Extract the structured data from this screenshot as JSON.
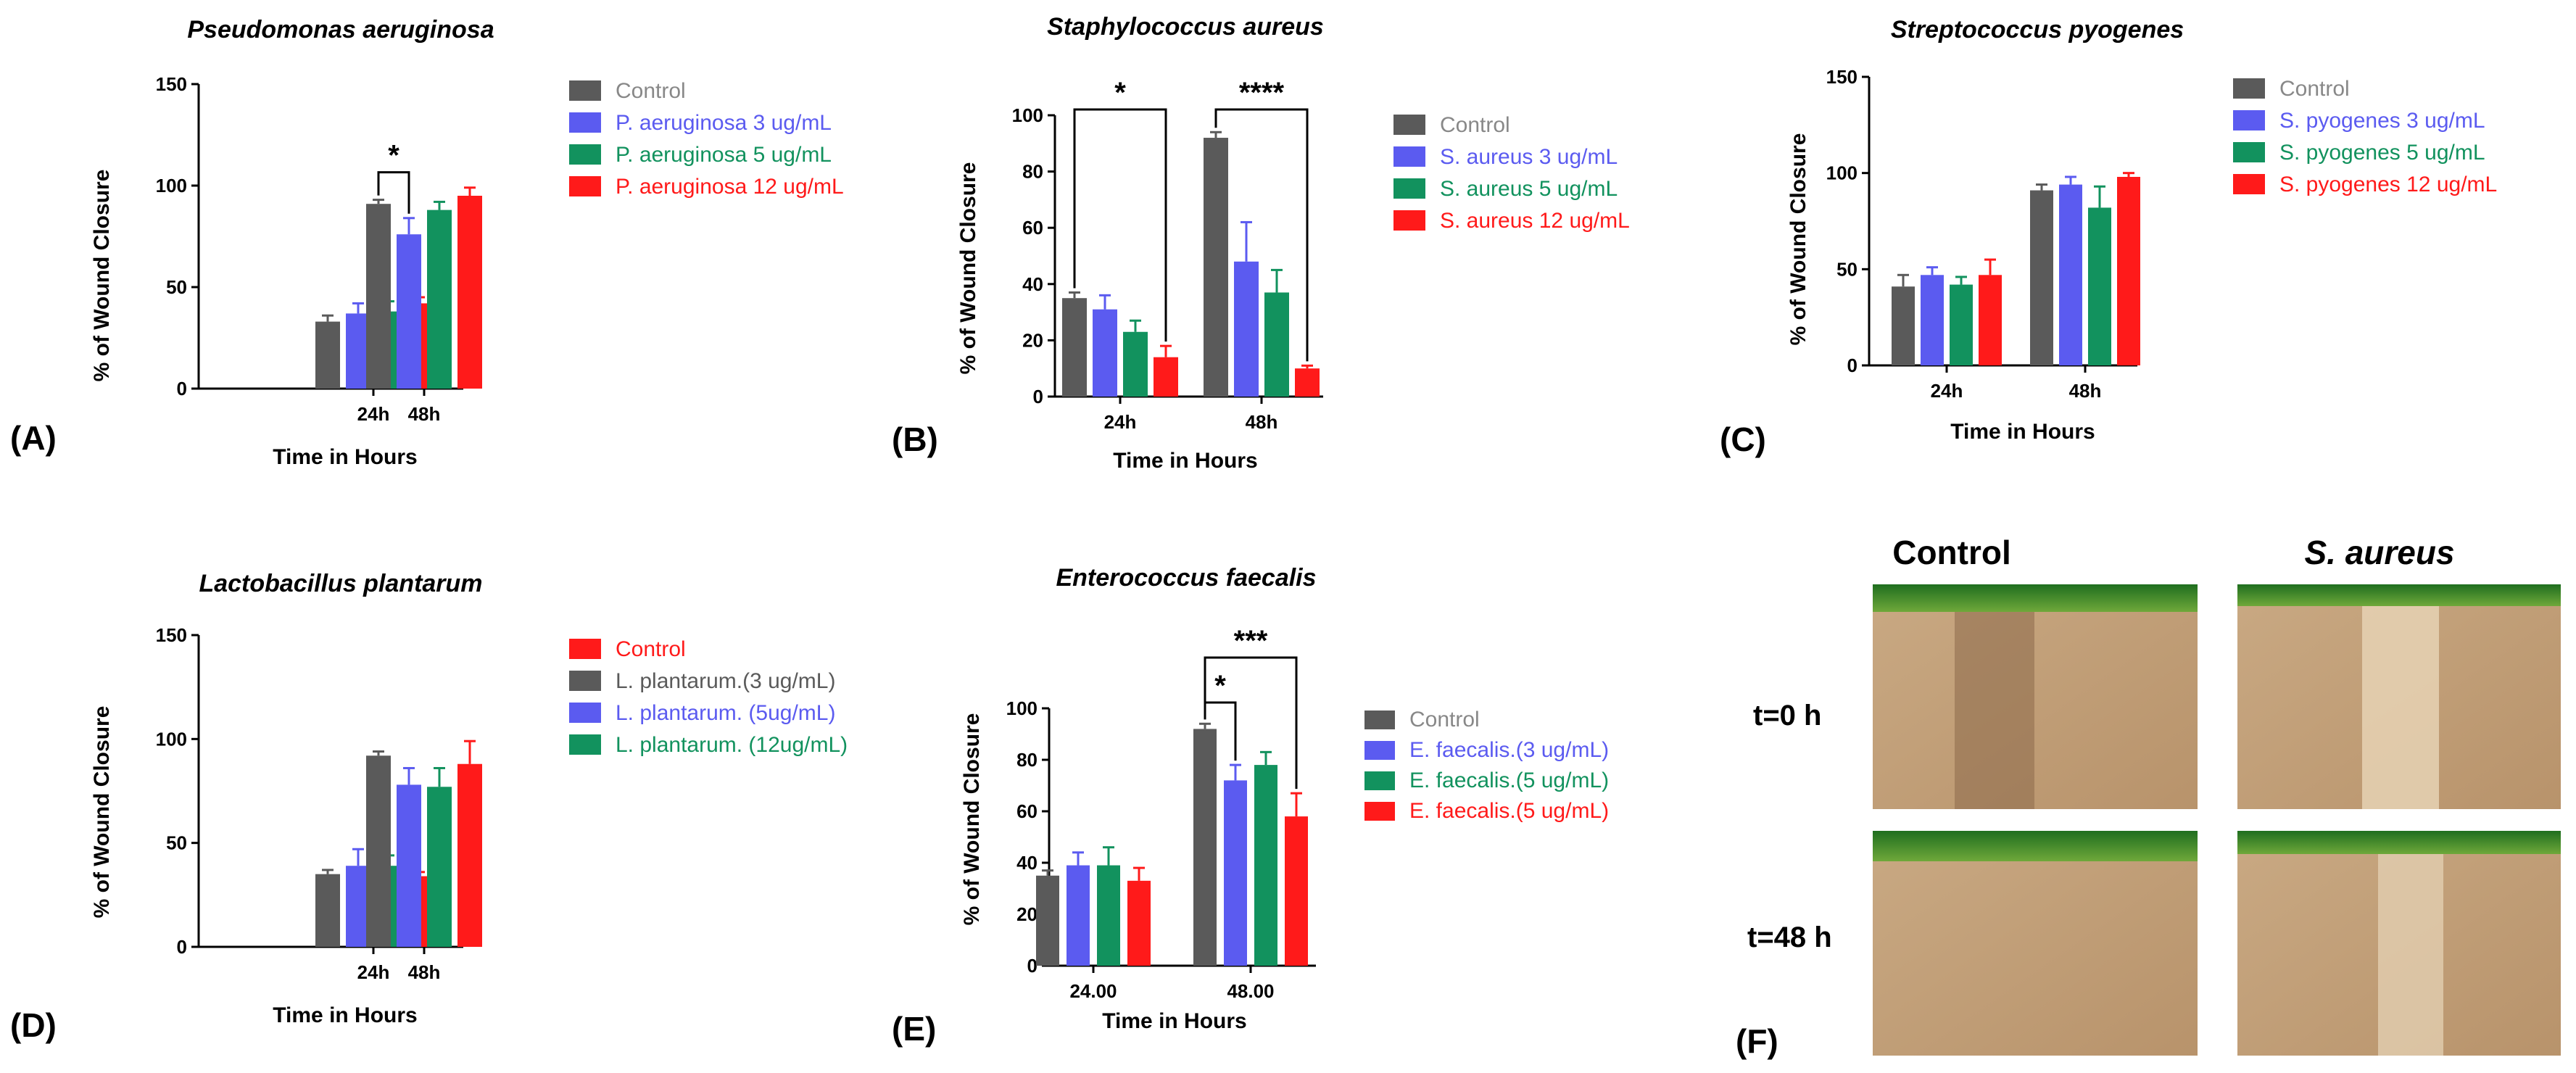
{
  "colors": {
    "control": "#5a5a5a",
    "low": "#5b5bf0",
    "mid": "#12925e",
    "high": "#ff1a1a"
  },
  "chart_data": [
    {
      "panel": "(A)",
      "type": "bar",
      "title": "Pseudomonas aeruginosa",
      "xlabel": "Time in Hours",
      "ylabel": "% of Wound Closure",
      "categories": [
        "24h",
        "48h"
      ],
      "ylim": [
        0,
        150
      ],
      "yticks": [
        0,
        50,
        100,
        150
      ],
      "series": [
        {
          "name": "Control",
          "values": [
            33,
            91
          ],
          "errors": [
            3,
            2
          ]
        },
        {
          "name": "P. aeruginosa 3 ug/mL",
          "values": [
            37,
            76
          ],
          "errors": [
            5,
            8
          ]
        },
        {
          "name": "P. aeruginosa 5 ug/mL",
          "values": [
            38,
            88
          ],
          "errors": [
            5,
            4
          ]
        },
        {
          "name": "P. aeruginosa 12 ug/mL",
          "values": [
            42,
            95
          ],
          "errors": [
            3,
            4
          ]
        }
      ],
      "significance": [
        {
          "label": "*",
          "category": 1,
          "from_series": 0,
          "to_series": 1
        }
      ]
    },
    {
      "panel": "(B)",
      "type": "bar",
      "title": "Staphylococcus aureus",
      "xlabel": "Time in Hours",
      "ylabel": "% of Wound Closure",
      "categories": [
        "24h",
        "48h"
      ],
      "ylim": [
        0,
        100
      ],
      "yticks": [
        0,
        20,
        40,
        60,
        80,
        100
      ],
      "series": [
        {
          "name": "Control",
          "values": [
            35,
            92
          ],
          "errors": [
            2,
            2
          ]
        },
        {
          "name": "S. aureus 3 ug/mL",
          "values": [
            31,
            48
          ],
          "errors": [
            5,
            14
          ]
        },
        {
          "name": "S. aureus 5 ug/mL",
          "values": [
            23,
            37
          ],
          "errors": [
            4,
            8
          ]
        },
        {
          "name": "S. aureus 12 ug/mL",
          "values": [
            14,
            10
          ],
          "errors": [
            4,
            1
          ]
        }
      ],
      "significance": [
        {
          "label": "*",
          "category": 0,
          "from_series": 0,
          "to_series": 3
        },
        {
          "label": "****",
          "category": 1,
          "from_series": 0,
          "to_series": 3
        }
      ]
    },
    {
      "panel": "(C)",
      "type": "bar",
      "title": "Streptococcus pyogenes",
      "xlabel": "Time in Hours",
      "ylabel": "% of Wound Closure",
      "categories": [
        "24h",
        "48h"
      ],
      "ylim": [
        0,
        150
      ],
      "yticks": [
        0,
        50,
        100,
        150
      ],
      "series": [
        {
          "name": "Control",
          "values": [
            41,
            91
          ],
          "errors": [
            6,
            3
          ]
        },
        {
          "name": "S. pyogenes 3 ug/mL",
          "values": [
            47,
            94
          ],
          "errors": [
            4,
            4
          ]
        },
        {
          "name": "S. pyogenes 5 ug/mL",
          "values": [
            42,
            82
          ],
          "errors": [
            4,
            11
          ]
        },
        {
          "name": "S. pyogenes 12 ug/mL",
          "values": [
            47,
            98
          ],
          "errors": [
            8,
            2
          ]
        }
      ],
      "significance": []
    },
    {
      "panel": "(D)",
      "type": "bar",
      "title": "Lactobacillus plantarum",
      "xlabel": "Time in Hours",
      "ylabel": "% of Wound Closure",
      "categories": [
        "24h",
        "48h"
      ],
      "ylim": [
        0,
        150
      ],
      "yticks": [
        0,
        50,
        100,
        150
      ],
      "series": [
        {
          "name": "L. plantarum.(3 ug/mL)",
          "values": [
            35,
            92
          ],
          "errors": [
            2,
            2
          ]
        },
        {
          "name": "L. plantarum. (5ug/mL)",
          "values": [
            39,
            78
          ],
          "errors": [
            8,
            8
          ]
        },
        {
          "name": "L. plantarum. (12ug/mL)",
          "values": [
            39,
            77
          ],
          "errors": [
            5,
            9
          ]
        },
        {
          "name": "Control",
          "values": [
            34,
            88
          ],
          "errors": [
            2,
            11
          ]
        }
      ],
      "legend_order": [
        3,
        0,
        1,
        2
      ],
      "series_color_keys": [
        "control",
        "low",
        "mid",
        "high"
      ],
      "significance": []
    },
    {
      "panel": "(E)",
      "type": "bar",
      "title": "Enterococcus faecalis",
      "xlabel": "Time in Hours",
      "ylabel": "% of Wound Closure",
      "categories": [
        "24.00",
        "48.00"
      ],
      "ylim": [
        0,
        100
      ],
      "yticks": [
        0,
        20,
        40,
        60,
        80,
        100
      ],
      "series": [
        {
          "name": "Control",
          "values": [
            35,
            92
          ],
          "errors": [
            2,
            2
          ]
        },
        {
          "name": "E. faecalis.(3 ug/mL)",
          "values": [
            39,
            72
          ],
          "errors": [
            5,
            6
          ]
        },
        {
          "name": "E. faecalis.(5 ug/mL)",
          "values": [
            39,
            78
          ],
          "errors": [
            7,
            5
          ]
        },
        {
          "name": "E. faecalis.(5 ug/mL)",
          "values": [
            33,
            58
          ],
          "errors": [
            5,
            9
          ]
        }
      ],
      "significance": [
        {
          "label": "*",
          "category": 1,
          "from_series": 0,
          "to_series": 1
        },
        {
          "label": "***",
          "category": 1,
          "from_series": 0,
          "to_series": 3
        }
      ]
    }
  ],
  "panel_f": {
    "label": "(F)",
    "columns": [
      "Control",
      "S. aureus"
    ],
    "rows": [
      "t=0 h",
      "t=48 h"
    ]
  }
}
